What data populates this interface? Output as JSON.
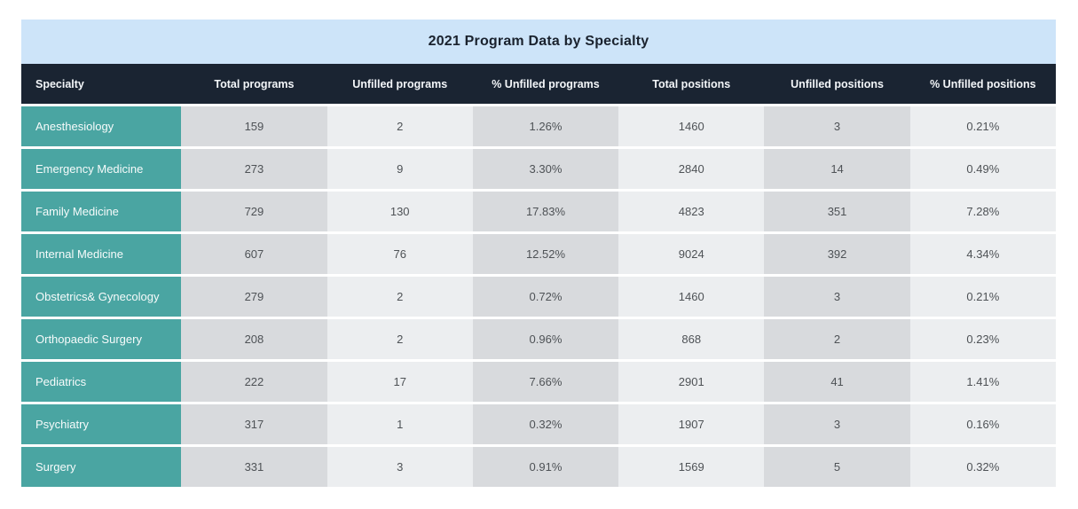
{
  "chart_data": {
    "type": "table",
    "title": "2021 Program Data by Specialty",
    "columns": [
      "Specialty",
      "Total programs",
      "Unfilled programs",
      "% Unfilled programs",
      "Total positions",
      "Unfilled positions",
      "% Unfilled positions"
    ],
    "rows": [
      [
        "Anesthesiology",
        "159",
        "2",
        "1.26%",
        "1460",
        "3",
        "0.21%"
      ],
      [
        "Emergency Medicine",
        "273",
        "9",
        "3.30%",
        "2840",
        "14",
        "0.49%"
      ],
      [
        "Family Medicine",
        "729",
        "130",
        "17.83%",
        "4823",
        "351",
        "7.28%"
      ],
      [
        "Internal Medicine",
        "607",
        "76",
        "12.52%",
        "9024",
        "392",
        "4.34%"
      ],
      [
        "Obstetrics& Gynecology",
        "279",
        "2",
        "0.72%",
        "1460",
        "3",
        "0.21%"
      ],
      [
        "Orthopaedic Surgery",
        "208",
        "2",
        "0.96%",
        "868",
        "2",
        "0.23%"
      ],
      [
        "Pediatrics",
        "222",
        "17",
        "7.66%",
        "2901",
        "41",
        "1.41%"
      ],
      [
        "Psychiatry",
        "317",
        "1",
        "0.32%",
        "1907",
        "3",
        "0.16%"
      ],
      [
        "Surgery",
        "331",
        "3",
        "0.91%",
        "1569",
        "5",
        "0.32%"
      ]
    ],
    "layout": {
      "grid": false,
      "row_striping": "none",
      "column_striping": "alternating-gray"
    }
  },
  "colors": {
    "title_band_bg": "#cde4f9",
    "header_bg": "#1a2432",
    "specialty_column_bg": "#4aa5a2",
    "column_dark_bg": "#d8dadd",
    "column_light_bg": "#eceef0",
    "data_text": "#4e5256",
    "header_text": "#f3f6f9",
    "title_text": "#1a222e"
  }
}
